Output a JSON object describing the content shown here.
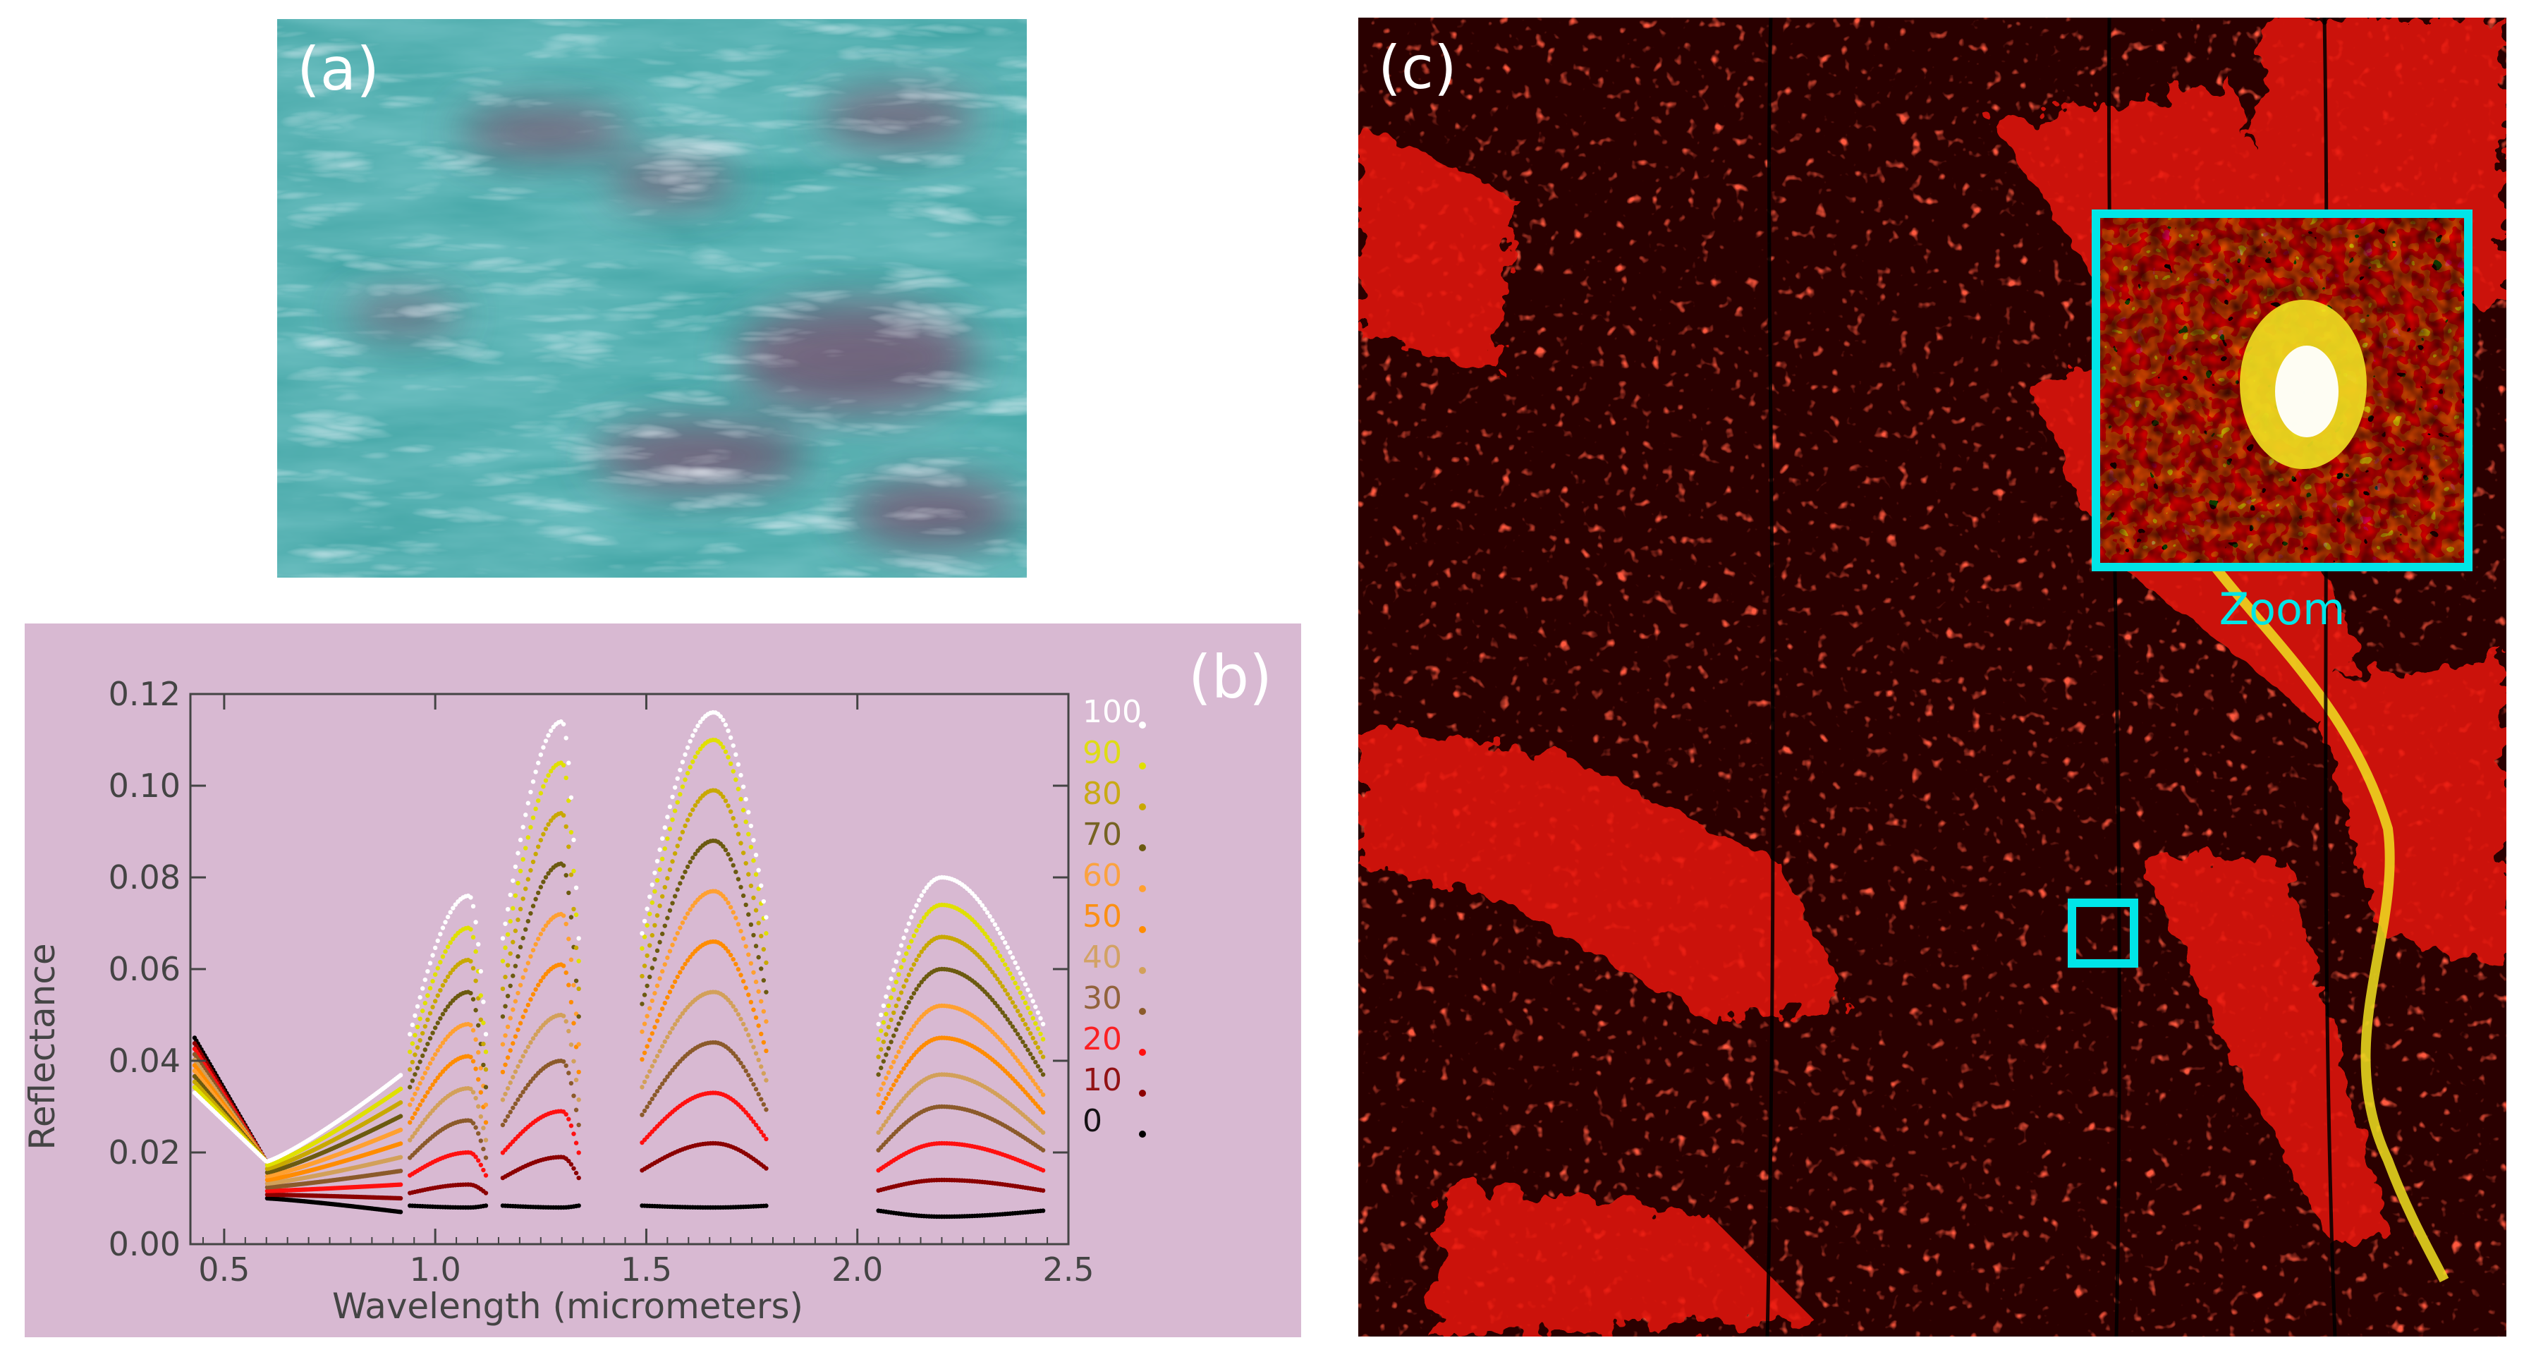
{
  "panel_a": {
    "label": "(a)"
  },
  "panel_b": {
    "label": "(b)"
  },
  "panel_c": {
    "label": "(c)",
    "zoom_label": "Zoom"
  },
  "colors": {
    "zoom_box": "#00e5e8",
    "plot_bg": "#d8b9d2",
    "map_red": "#ff1a0a",
    "map_bg": "#2a0000"
  },
  "chart_data": {
    "type": "scatter",
    "xlabel": "Wavelength (micrometers)",
    "ylabel": "Reflectance",
    "xlim": [
      0.42,
      2.5
    ],
    "ylim": [
      0.0,
      0.12
    ],
    "xticks": [
      "0.5",
      "1.0",
      "1.5",
      "2.0",
      "2.5"
    ],
    "yticks": [
      "0.00",
      "0.02",
      "0.04",
      "0.06",
      "0.08",
      "0.10",
      "0.12"
    ],
    "legend_position": "right",
    "series": [
      {
        "name": "0",
        "color": "#000000",
        "peaks": {
          "vis": 0.007,
          "b1": 0.008,
          "b2": 0.008,
          "b3": 0.008,
          "b4": 0.006
        }
      },
      {
        "name": "10",
        "color": "#8b0000",
        "peaks": {
          "vis": 0.01,
          "b1": 0.013,
          "b2": 0.019,
          "b3": 0.022,
          "b4": 0.014
        }
      },
      {
        "name": "20",
        "color": "#ff1010",
        "peaks": {
          "vis": 0.013,
          "b1": 0.02,
          "b2": 0.029,
          "b3": 0.033,
          "b4": 0.022
        }
      },
      {
        "name": "30",
        "color": "#8b5a2b",
        "peaks": {
          "vis": 0.016,
          "b1": 0.027,
          "b2": 0.04,
          "b3": 0.044,
          "b4": 0.03
        }
      },
      {
        "name": "40",
        "color": "#d2a05a",
        "peaks": {
          "vis": 0.019,
          "b1": 0.034,
          "b2": 0.05,
          "b3": 0.055,
          "b4": 0.037
        }
      },
      {
        "name": "50",
        "color": "#ff8c00",
        "peaks": {
          "vis": 0.022,
          "b1": 0.041,
          "b2": 0.061,
          "b3": 0.066,
          "b4": 0.045
        }
      },
      {
        "name": "60",
        "color": "#ffa030",
        "peaks": {
          "vis": 0.025,
          "b1": 0.048,
          "b2": 0.072,
          "b3": 0.077,
          "b4": 0.052
        }
      },
      {
        "name": "70",
        "color": "#6b5a10",
        "peaks": {
          "vis": 0.028,
          "b1": 0.055,
          "b2": 0.083,
          "b3": 0.088,
          "b4": 0.06
        }
      },
      {
        "name": "80",
        "color": "#c8a800",
        "peaks": {
          "vis": 0.031,
          "b1": 0.062,
          "b2": 0.094,
          "b3": 0.099,
          "b4": 0.067
        }
      },
      {
        "name": "90",
        "color": "#e0e000",
        "peaks": {
          "vis": 0.034,
          "b1": 0.069,
          "b2": 0.105,
          "b3": 0.11,
          "b4": 0.074
        }
      },
      {
        "name": "100",
        "color": "#ffffff",
        "peaks": {
          "vis": 0.037,
          "b1": 0.076,
          "b2": 0.114,
          "b3": 0.116,
          "b4": 0.08
        }
      }
    ]
  }
}
